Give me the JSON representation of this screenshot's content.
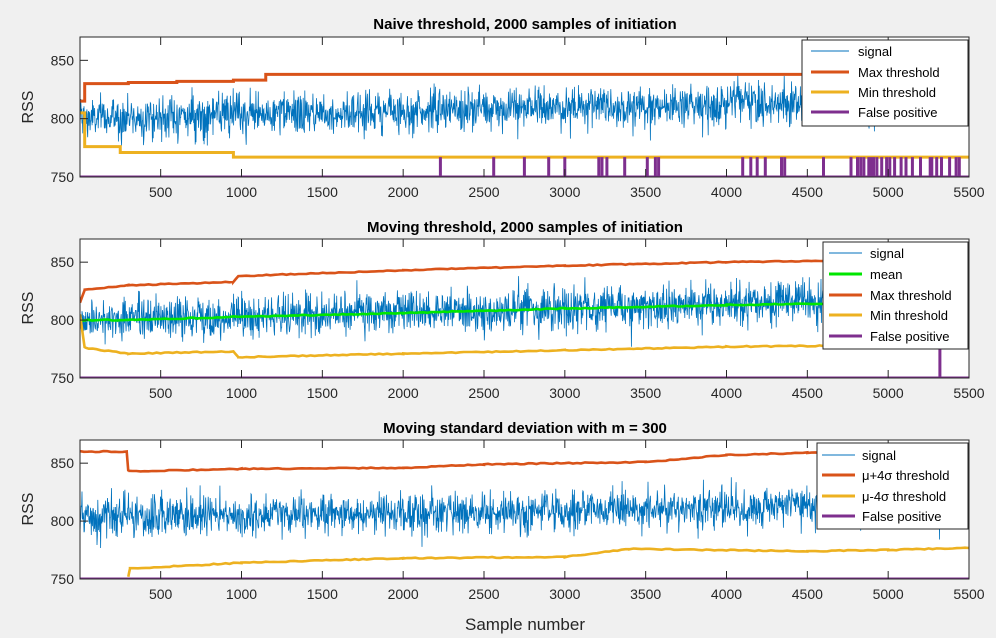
{
  "xlabel": "Sample number",
  "chart_data": [
    {
      "type": "line",
      "title": "Naive threshold, 2000 samples of initiation",
      "ylabel": "RSS",
      "xlim": [
        1,
        5500
      ],
      "ylim": [
        750,
        870
      ],
      "xticks": [
        500,
        1000,
        1500,
        2000,
        2500,
        3000,
        3500,
        4000,
        4500,
        5000,
        5500
      ],
      "yticks": [
        750,
        800,
        850
      ],
      "grid": false,
      "legend_position": "top-right",
      "series": [
        {
          "name": "signal",
          "color": "#0072BD",
          "kind": "noise",
          "start": 800,
          "end": 818,
          "std": 9,
          "band": [
            777,
            850
          ]
        },
        {
          "name": "Max threshold",
          "color": "#D95319",
          "kind": "step",
          "points": [
            [
              1,
              815
            ],
            [
              30,
              830
            ],
            [
              300,
              831
            ],
            [
              600,
              832
            ],
            [
              950,
              833
            ],
            [
              1150,
              838
            ],
            [
              5500,
              838
            ]
          ]
        },
        {
          "name": "Min threshold",
          "color": "#EDB120",
          "kind": "step",
          "points": [
            [
              1,
              805
            ],
            [
              30,
              776
            ],
            [
              250,
              771
            ],
            [
              950,
              767
            ],
            [
              5500,
              767
            ]
          ]
        },
        {
          "name": "False positive",
          "color": "#7E2F8E",
          "kind": "spikes",
          "base": 750,
          "top": 767,
          "x": [
            2230,
            2560,
            2750,
            2900,
            3000,
            3210,
            3230,
            3260,
            3370,
            3510,
            3560,
            3580,
            4100,
            4150,
            4190,
            4240,
            4340,
            4360,
            4600,
            4770,
            4810,
            4830,
            4850,
            4880,
            4890,
            4900,
            4910,
            4930,
            4960,
            4990,
            5010,
            5040,
            5080,
            5110,
            5150,
            5200,
            5260,
            5270,
            5300,
            5330,
            5380,
            5420,
            5440
          ]
        }
      ]
    },
    {
      "type": "line",
      "title": "Moving threshold, 2000 samples of initiation",
      "ylabel": "RSS",
      "xlim": [
        1,
        5500
      ],
      "ylim": [
        750,
        870
      ],
      "xticks": [
        500,
        1000,
        1500,
        2000,
        2500,
        3000,
        3500,
        4000,
        4500,
        5000,
        5500
      ],
      "yticks": [
        750,
        800,
        850
      ],
      "grid": false,
      "legend_position": "top-right",
      "series": [
        {
          "name": "signal",
          "color": "#0072BD",
          "kind": "noise",
          "start": 800,
          "end": 818,
          "std": 9,
          "band": [
            777,
            852
          ]
        },
        {
          "name": "mean",
          "color": "#00E600",
          "kind": "line",
          "points": [
            [
              1,
              800
            ],
            [
              300,
              800
            ],
            [
              1000,
              803
            ],
            [
              2000,
              806
            ],
            [
              3000,
              810
            ],
            [
              4000,
              813
            ],
            [
              5500,
              816
            ]
          ]
        },
        {
          "name": "Max threshold",
          "color": "#D95319",
          "kind": "line",
          "points": [
            [
              1,
              815
            ],
            [
              30,
              826
            ],
            [
              300,
              830
            ],
            [
              950,
              833
            ],
            [
              980,
              838
            ],
            [
              2000,
              843
            ],
            [
              3000,
              847
            ],
            [
              4000,
              850
            ],
            [
              5500,
              853
            ]
          ]
        },
        {
          "name": "Min threshold",
          "color": "#EDB120",
          "kind": "line",
          "points": [
            [
              1,
              805
            ],
            [
              30,
              776
            ],
            [
              300,
              771
            ],
            [
              950,
              773
            ],
            [
              980,
              768
            ],
            [
              2000,
              771
            ],
            [
              3000,
              774
            ],
            [
              4000,
              777
            ],
            [
              5500,
              779
            ]
          ]
        },
        {
          "name": "False positive",
          "color": "#7E2F8E",
          "kind": "spikes",
          "base": 750,
          "top": 779,
          "x": [
            5320
          ]
        }
      ]
    },
    {
      "type": "line",
      "title": "Moving standard deviation with m = 300",
      "ylabel": "RSS",
      "xlim": [
        1,
        5500
      ],
      "ylim": [
        750,
        870
      ],
      "xticks": [
        500,
        1000,
        1500,
        2000,
        2500,
        3000,
        3500,
        4000,
        4500,
        5000,
        5500
      ],
      "yticks": [
        750,
        800,
        850
      ],
      "grid": false,
      "legend_position": "top-right",
      "series": [
        {
          "name": "μ+4σ threshold",
          "color": "#D95319",
          "kind": "line",
          "points": [
            [
              1,
              860
            ],
            [
              290,
              860
            ],
            [
              300,
              843
            ],
            [
              1000,
              845
            ],
            [
              2000,
              846
            ],
            [
              2500,
              849
            ],
            [
              3500,
              851
            ],
            [
              4000,
              857
            ],
            [
              4500,
              859
            ],
            [
              5000,
              860
            ],
            [
              5500,
              860
            ]
          ]
        },
        {
          "name": "μ-4σ threshold",
          "color": "#EDB120",
          "kind": "line",
          "points": [
            [
              300,
              752
            ],
            [
              310,
              759
            ],
            [
              1000,
              764
            ],
            [
              2000,
              768
            ],
            [
              3000,
              769
            ],
            [
              3400,
              776
            ],
            [
              4500,
              774
            ],
            [
              5000,
              775
            ],
            [
              5500,
              777
            ]
          ]
        },
        {
          "name": "signal",
          "color": "#0072BD",
          "kind": "noise",
          "start": 802,
          "end": 815,
          "std": 9,
          "band": [
            775,
            855
          ]
        },
        {
          "name": "False positive",
          "color": "#7E2F8E",
          "kind": "spikes",
          "base": 750,
          "top": 750,
          "x": []
        }
      ]
    }
  ]
}
